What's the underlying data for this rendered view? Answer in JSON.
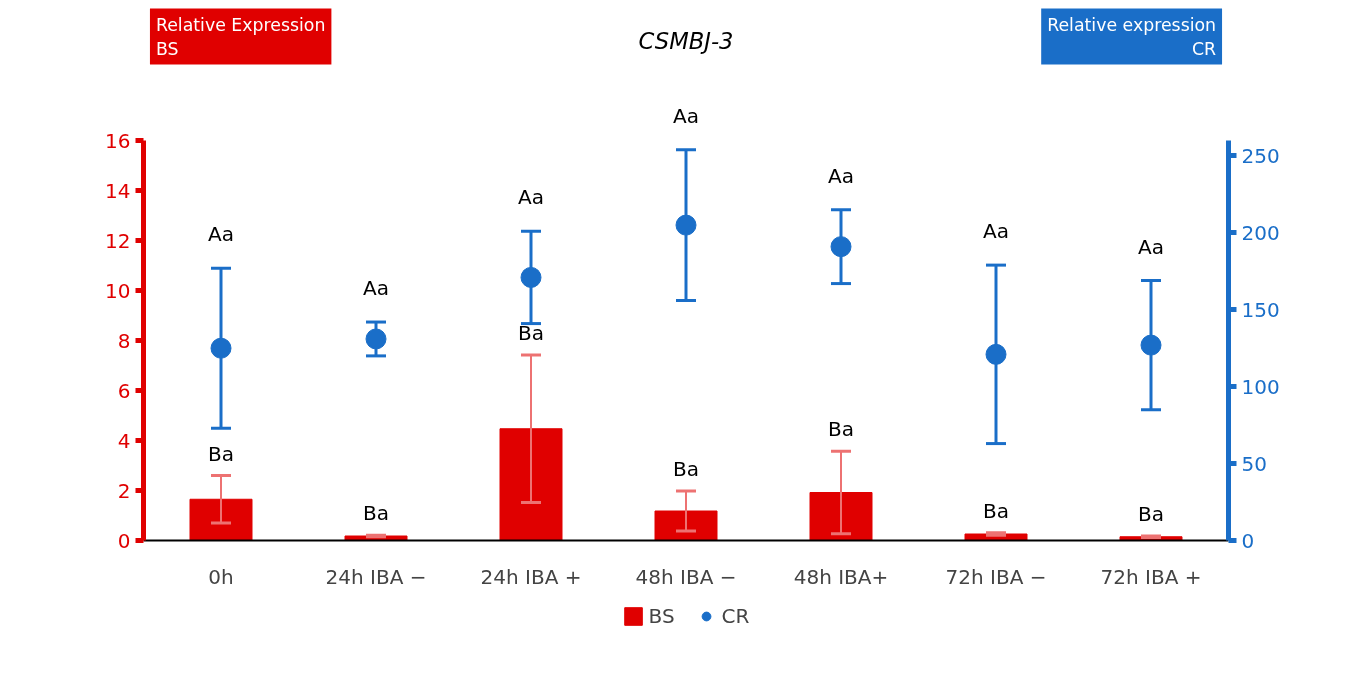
{
  "chart_data": {
    "type": "bar",
    "title": "CSMBJ-3",
    "ylabel": "Relative Expression\nBS",
    "y2label": "Relative expression\nCR",
    "categories": [
      "0h",
      "24h IBA −",
      "24h IBA +",
      "48h IBA −",
      "48h IBA+",
      "72h IBA −",
      "72h IBA +"
    ],
    "series": [
      {
        "name": "BS",
        "color": "#e00000",
        "values": [
          1.65,
          0.18,
          4.47,
          1.18,
          1.92,
          0.26,
          0.15
        ],
        "errors": [
          0.95,
          0.03,
          2.95,
          0.8,
          1.65,
          0.05,
          0.03
        ]
      },
      {
        "name": "CR",
        "type": "scatter",
        "axis": "y2",
        "marker": "circle",
        "color": "#1a6ec8",
        "values": [
          125,
          131,
          171,
          205,
          191,
          121,
          127
        ],
        "errors": [
          52,
          11,
          30,
          49,
          24,
          58,
          42
        ]
      }
    ],
    "ylim": [
      0,
      16
    ],
    "yticks": [
      0,
      2,
      4,
      6,
      8,
      10,
      12,
      14,
      16
    ],
    "y2lim": [
      0,
      260
    ],
    "y2ticks": [
      0,
      50,
      100,
      150,
      200,
      250
    ],
    "grid": false,
    "legend": "bottom",
    "annotations": [
      "Ba",
      "Ba",
      "Ba",
      "Ba",
      "Ba",
      "Ba",
      "Ba",
      "Aa",
      "Aa",
      "Aa",
      "Aa",
      "Aa",
      "Aa",
      "Aa"
    ]
  }
}
